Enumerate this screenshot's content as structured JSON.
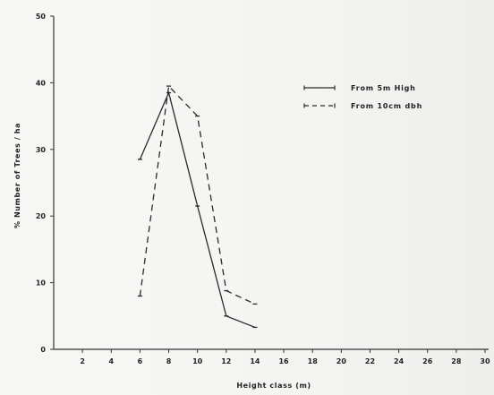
{
  "chart_data": {
    "type": "line",
    "title": "",
    "xlabel": "Height class (m)",
    "ylabel": "% Number of Trees / ha",
    "xlim": [
      0,
      30
    ],
    "ylim": [
      0,
      50
    ],
    "x_ticks": [
      "2",
      "4",
      "6",
      "8",
      "10",
      "12",
      "14",
      "16",
      "18",
      "20",
      "22",
      "24",
      "26",
      "28",
      "30"
    ],
    "y_ticks": [
      "0",
      "10",
      "20",
      "30",
      "40",
      "50"
    ],
    "legend_position": "top-right",
    "series": [
      {
        "name": "From 5m High",
        "style": "solid",
        "x": [
          6,
          8,
          10,
          12,
          14
        ],
        "values": [
          28.5,
          38.5,
          21.5,
          5,
          3.3
        ]
      },
      {
        "name": "From 10cm dbh",
        "style": "dashed",
        "x": [
          6,
          8,
          10,
          12,
          14
        ],
        "values": [
          8,
          39.5,
          35,
          8.8,
          6.8
        ]
      }
    ]
  }
}
